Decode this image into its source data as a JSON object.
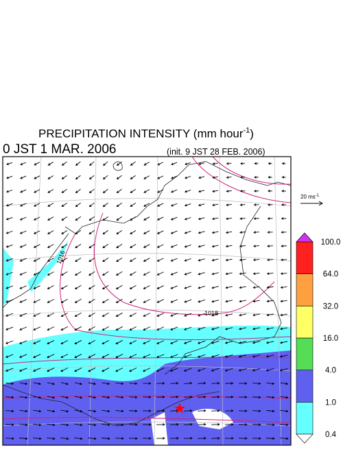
{
  "title": {
    "main": "PRECIPITATION INTENSITY (mm hour",
    "sup": "-1",
    "close": ")"
  },
  "valid_time": "0 JST 1 MAR. 2006",
  "init_time": "(init. 9 JST 28 FEB. 2006)",
  "wind_reference": {
    "main": "20 ms",
    "sup": "-1"
  },
  "isobar_labels": [
    "1016",
    "1018"
  ],
  "colorbar": {
    "levels": [
      {
        "value": 0.4,
        "label": "0.4"
      },
      {
        "value": 1.0,
        "label": "1.0"
      },
      {
        "value": 4.0,
        "label": "4.0"
      },
      {
        "value": 16.0,
        "label": "16.0"
      },
      {
        "value": 32.0,
        "label": "32.0"
      },
      {
        "value": 64.0,
        "label": "64.0"
      },
      {
        "value": 100.0,
        "label": "100.0"
      }
    ],
    "colors": [
      "#66ffff",
      "#6060f0",
      "#55dd55",
      "#ffff66",
      "#ffa040",
      "#ff2020"
    ],
    "below_color": "#ffffff",
    "above_color": "#cc33ee"
  }
}
